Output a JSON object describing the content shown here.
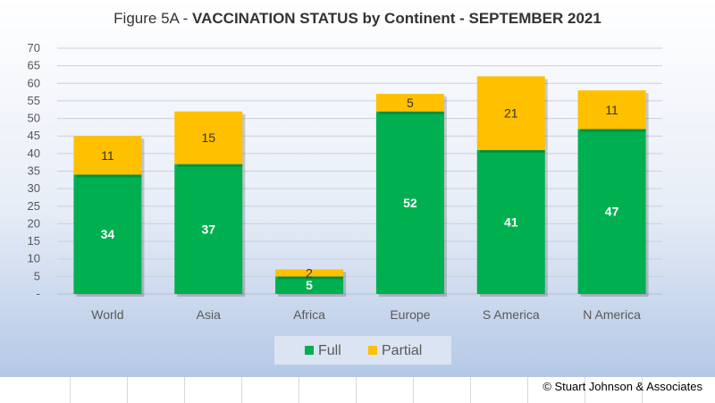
{
  "chart_data": {
    "type": "bar",
    "stacked": true,
    "title_prefix": "Figure 5A - ",
    "title_bold": "VACCINATION STATUS by Continent - SEPTEMBER 2021",
    "categories": [
      "World",
      "Asia",
      "Africa",
      "Europe",
      "S America",
      "N America"
    ],
    "series": [
      {
        "name": "Full",
        "color": "#00b050",
        "label_color": "#ffffff",
        "values": [
          34,
          37,
          5,
          52,
          41,
          47
        ]
      },
      {
        "name": "Partial",
        "color": "#ffc000",
        "label_color": "#333333",
        "values": [
          11,
          15,
          2,
          5,
          21,
          11
        ]
      }
    ],
    "ylim": [
      0,
      70
    ],
    "yticks": [
      {
        "value": 0,
        "label": "-"
      },
      {
        "value": 5,
        "label": "5"
      },
      {
        "value": 10,
        "label": "10"
      },
      {
        "value": 15,
        "label": "15"
      },
      {
        "value": 20,
        "label": "20"
      },
      {
        "value": 25,
        "label": "25"
      },
      {
        "value": 30,
        "label": "30"
      },
      {
        "value": 35,
        "label": "35"
      },
      {
        "value": 40,
        "label": "40"
      },
      {
        "value": 45,
        "label": "45"
      },
      {
        "value": 50,
        "label": "50"
      },
      {
        "value": 55,
        "label": "55"
      },
      {
        "value": 60,
        "label": "60"
      },
      {
        "value": 65,
        "label": "65"
      },
      {
        "value": 70,
        "label": "70"
      }
    ],
    "grid": true,
    "legend_position": "bottom"
  },
  "footer": {
    "copyright": "© Stuart Johnson & Associates"
  }
}
